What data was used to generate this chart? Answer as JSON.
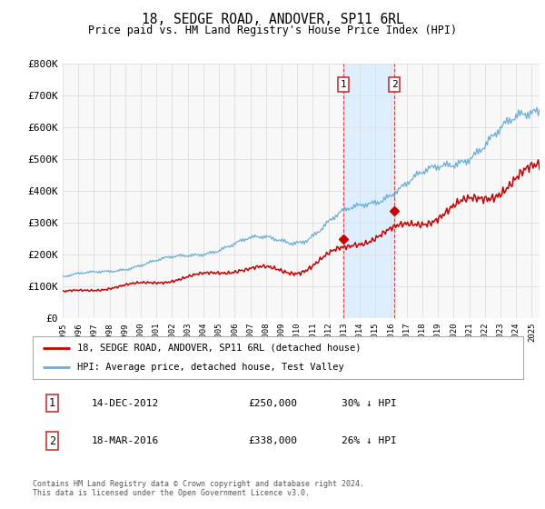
{
  "title": "18, SEDGE ROAD, ANDOVER, SP11 6RL",
  "subtitle": "Price paid vs. HM Land Registry's House Price Index (HPI)",
  "ytick_labels": [
    "£0",
    "£100K",
    "£200K",
    "£300K",
    "£400K",
    "£500K",
    "£600K",
    "£700K",
    "£800K"
  ],
  "yticks": [
    0,
    100000,
    200000,
    300000,
    400000,
    500000,
    600000,
    700000,
    800000
  ],
  "hpi_color": "#6aaed6",
  "price_color": "#cc0000",
  "sale1_year": 2012.96,
  "sale2_year": 2016.21,
  "sale1_price": 250000,
  "sale2_price": 338000,
  "legend_line1": "18, SEDGE ROAD, ANDOVER, SP11 6RL (detached house)",
  "legend_line2": "HPI: Average price, detached house, Test Valley",
  "footer": "Contains HM Land Registry data © Crown copyright and database right 2024.\nThis data is licensed under the Open Government Licence v3.0.",
  "background_color": "#ffffff",
  "plot_bg_color": "#f8f8f8",
  "shade_color": "#ddeeff",
  "grid_color": "#dddddd"
}
